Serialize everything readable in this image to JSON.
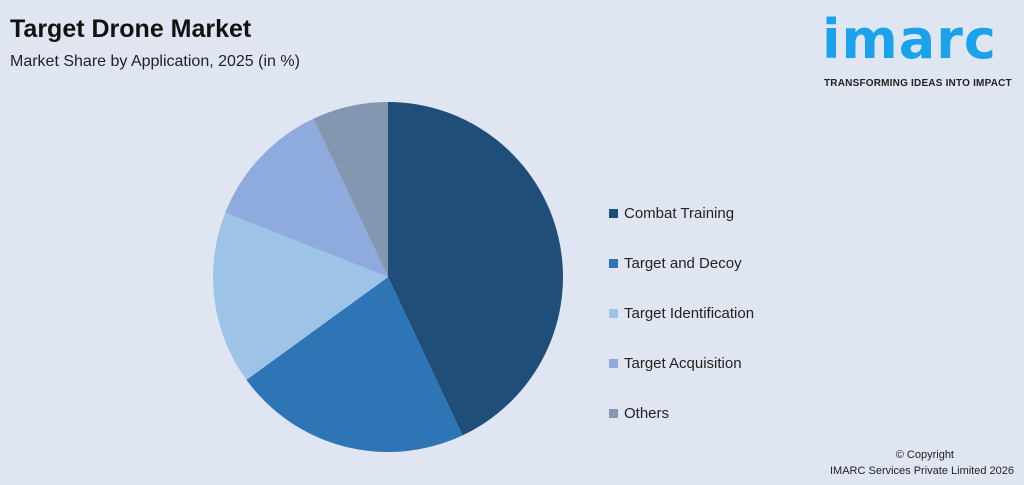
{
  "header": {
    "title": "Target Drone Market",
    "subtitle": "Market Share by Application, 2025 (in %)"
  },
  "logo": {
    "word": "imarc",
    "tagline": "TRANSFORMING IDEAS INTO IMPACT",
    "color": "#1aa3ec"
  },
  "copyright": {
    "line1": "© Copyright",
    "line2": "IMARC Services Private Limited 2026"
  },
  "chart_data": {
    "type": "pie",
    "title": "Target Drone Market",
    "subtitle": "Market Share by Application, 2025 (in %)",
    "legend_position": "right",
    "start_angle": "12 o'clock, clockwise",
    "categories": [
      "Combat Training",
      "Target and Decoy",
      "Target Identification",
      "Target Acquisition",
      "Others"
    ],
    "values": [
      43,
      22,
      16,
      12,
      7
    ],
    "colors": [
      "#1f4e79",
      "#2e75b6",
      "#9dc3e6",
      "#8faadc",
      "#8497b0"
    ]
  }
}
